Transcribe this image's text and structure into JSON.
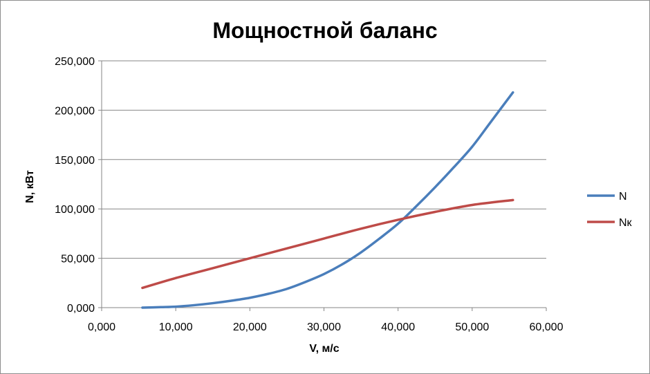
{
  "chart_data": {
    "type": "line",
    "title": "Мощностной баланс",
    "xlabel": "V, м/с",
    "ylabel": "N, кВт",
    "xlim": [
      0,
      60
    ],
    "ylim": [
      0,
      250
    ],
    "x_ticks": [
      "0,000",
      "10,000",
      "20,000",
      "30,000",
      "40,000",
      "50,000",
      "60,000"
    ],
    "y_ticks": [
      "0,000",
      "50,000",
      "100,000",
      "150,000",
      "200,000",
      "250,000"
    ],
    "grid": "horizontal",
    "legend_position": "right",
    "series": [
      {
        "name": "N",
        "color": "#4a7ebb",
        "x": [
          5.5,
          8,
          10,
          12.5,
          15,
          17.5,
          20,
          22.5,
          25,
          27.5,
          30,
          32.5,
          35,
          37.5,
          40,
          42.5,
          45,
          47.5,
          50,
          52.5,
          55.5
        ],
        "y": [
          0,
          0.5,
          1,
          2.5,
          4.5,
          7,
          10,
          14,
          19,
          26,
          34,
          44,
          56,
          70,
          85,
          103,
          122,
          142,
          163,
          188,
          218
        ]
      },
      {
        "name": "Nк",
        "color": "#be4b48",
        "x": [
          5.5,
          10,
          15,
          20,
          25,
          30,
          35,
          40,
          45,
          50,
          55.5
        ],
        "y": [
          20,
          30,
          40,
          50,
          60,
          70,
          80,
          89,
          97,
          104,
          109
        ]
      }
    ]
  }
}
